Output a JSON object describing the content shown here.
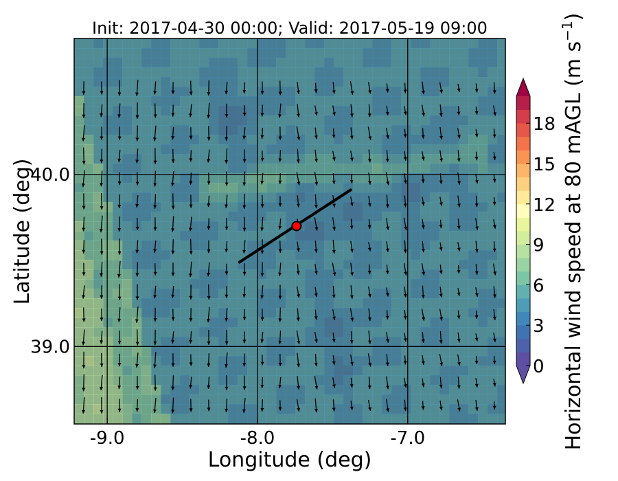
{
  "chart_data": {
    "type": "heatmap",
    "title": "Init: 2017-04-30 00:00; Valid: 2017-05-19 09:00",
    "xlabel": "Longitude (deg)",
    "ylabel": "Latitude (deg)",
    "xlim": [
      -9.22,
      -6.35
    ],
    "ylim": [
      38.55,
      40.79
    ],
    "x_ticks": [
      {
        "label": "-9.0",
        "value": -9.0
      },
      {
        "label": "-8.0",
        "value": -8.0
      },
      {
        "label": "-7.0",
        "value": -7.0
      }
    ],
    "y_ticks": [
      {
        "label": "40.0",
        "value": 40.0
      },
      {
        "label": "39.0",
        "value": 39.0
      }
    ],
    "colorbar": {
      "label": "Horizontal wind speed at 80 mAGL (m s",
      "label_exp": "−1",
      "label_close": ")",
      "min": 0,
      "max": 20,
      "step": 1,
      "extend": "both",
      "ticks": [
        {
          "label": "0",
          "value": 0
        },
        {
          "label": "3",
          "value": 3
        },
        {
          "label": "6",
          "value": 6
        },
        {
          "label": "9",
          "value": 9
        },
        {
          "label": "12",
          "value": 12
        },
        {
          "label": "15",
          "value": 15
        },
        {
          "label": "18",
          "value": 18
        }
      ],
      "colors": [
        "#5e4fa2",
        "#4f62a9",
        "#3f74b0",
        "#3f88b9",
        "#4f9cb8",
        "#62b1b0",
        "#7dc5a6",
        "#9ad3a3",
        "#b7e1a2",
        "#d3ed9f",
        "#eaf69d",
        "#fffebe",
        "#feea99",
        "#fdd17f",
        "#fdb567",
        "#f99455",
        "#f3734a",
        "#e55748",
        "#d33d4c",
        "#b51f4a",
        "#9e0142"
      ],
      "under_color": "#5e4fa2",
      "over_color": "#9e0142"
    },
    "wind_field": {
      "dominant_direction": "from north (southward-pointing arrows)",
      "low_wind_zone": "central and eastern inland terrain",
      "high_wind_zone": "western coastal strip"
    },
    "transect": {
      "start": [
        -8.12,
        39.49
      ],
      "end": [
        -7.38,
        39.91
      ],
      "color": "#000000"
    },
    "marker": {
      "lon": -7.74,
      "lat": 39.7,
      "color": "#ff0000"
    }
  }
}
